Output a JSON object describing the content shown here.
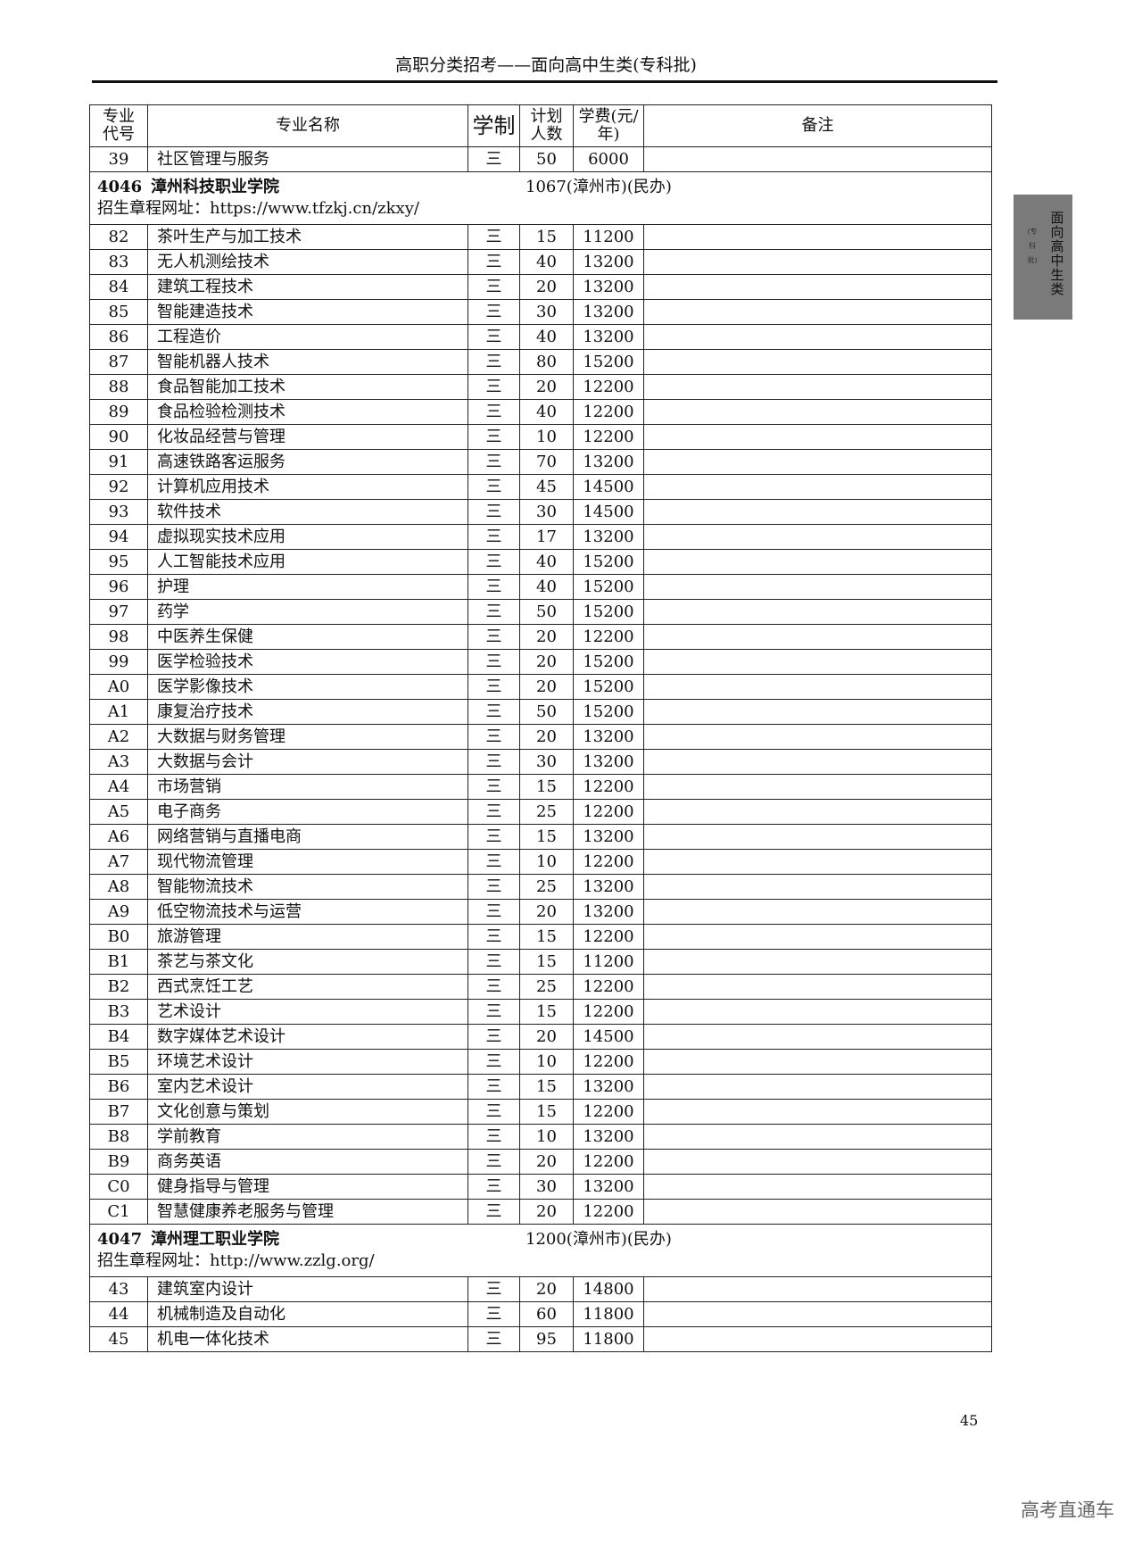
{
  "running_head": "高职分类招考——面向高中生类(专科批)",
  "side_tab": {
    "main": "面向高中生类",
    "sub": "(专科批)"
  },
  "table": {
    "headers": {
      "code": "专业代号",
      "name": "专业名称",
      "years": "学制",
      "plan": "计划人数",
      "fee": "学费(元/年)",
      "note": "备注"
    },
    "header_lines": {
      "code": [
        "专业",
        "代号"
      ],
      "plan": [
        "计划",
        "人数"
      ],
      "fee": [
        "学费",
        "(元/年)"
      ]
    },
    "sections": [
      {
        "type": "rows",
        "rows": [
          {
            "code": "39",
            "name": "社区管理与服务",
            "years": "三",
            "plan": "50",
            "fee": "6000",
            "note": ""
          }
        ]
      },
      {
        "type": "school",
        "id": "4046",
        "name": "漳州科技职业学院",
        "info": "1067(漳州市)(民办)",
        "url_line": "招生章程网址：https://www.tfzkj.cn/zkxy/"
      },
      {
        "type": "rows",
        "rows": [
          {
            "code": "82",
            "name": "茶叶生产与加工技术",
            "years": "三",
            "plan": "15",
            "fee": "11200",
            "note": ""
          },
          {
            "code": "83",
            "name": "无人机测绘技术",
            "years": "三",
            "plan": "40",
            "fee": "13200",
            "note": ""
          },
          {
            "code": "84",
            "name": "建筑工程技术",
            "years": "三",
            "plan": "20",
            "fee": "13200",
            "note": ""
          },
          {
            "code": "85",
            "name": "智能建造技术",
            "years": "三",
            "plan": "30",
            "fee": "13200",
            "note": ""
          },
          {
            "code": "86",
            "name": "工程造价",
            "years": "三",
            "plan": "40",
            "fee": "13200",
            "note": ""
          },
          {
            "code": "87",
            "name": "智能机器人技术",
            "years": "三",
            "plan": "80",
            "fee": "15200",
            "note": ""
          },
          {
            "code": "88",
            "name": "食品智能加工技术",
            "years": "三",
            "plan": "20",
            "fee": "12200",
            "note": ""
          },
          {
            "code": "89",
            "name": "食品检验检测技术",
            "years": "三",
            "plan": "40",
            "fee": "12200",
            "note": ""
          },
          {
            "code": "90",
            "name": "化妆品经营与管理",
            "years": "三",
            "plan": "10",
            "fee": "12200",
            "note": ""
          },
          {
            "code": "91",
            "name": "高速铁路客运服务",
            "years": "三",
            "plan": "70",
            "fee": "13200",
            "note": ""
          },
          {
            "code": "92",
            "name": "计算机应用技术",
            "years": "三",
            "plan": "45",
            "fee": "14500",
            "note": ""
          },
          {
            "code": "93",
            "name": "软件技术",
            "years": "三",
            "plan": "30",
            "fee": "14500",
            "note": ""
          },
          {
            "code": "94",
            "name": "虚拟现实技术应用",
            "years": "三",
            "plan": "17",
            "fee": "13200",
            "note": ""
          },
          {
            "code": "95",
            "name": "人工智能技术应用",
            "years": "三",
            "plan": "40",
            "fee": "15200",
            "note": ""
          },
          {
            "code": "96",
            "name": "护理",
            "years": "三",
            "plan": "40",
            "fee": "15200",
            "note": ""
          },
          {
            "code": "97",
            "name": "药学",
            "years": "三",
            "plan": "50",
            "fee": "15200",
            "note": ""
          },
          {
            "code": "98",
            "name": "中医养生保健",
            "years": "三",
            "plan": "20",
            "fee": "12200",
            "note": ""
          },
          {
            "code": "99",
            "name": "医学检验技术",
            "years": "三",
            "plan": "20",
            "fee": "15200",
            "note": ""
          },
          {
            "code": "A0",
            "name": "医学影像技术",
            "years": "三",
            "plan": "20",
            "fee": "15200",
            "note": ""
          },
          {
            "code": "A1",
            "name": "康复治疗技术",
            "years": "三",
            "plan": "50",
            "fee": "15200",
            "note": ""
          },
          {
            "code": "A2",
            "name": "大数据与财务管理",
            "years": "三",
            "plan": "20",
            "fee": "13200",
            "note": ""
          },
          {
            "code": "A3",
            "name": "大数据与会计",
            "years": "三",
            "plan": "30",
            "fee": "13200",
            "note": ""
          },
          {
            "code": "A4",
            "name": "市场营销",
            "years": "三",
            "plan": "15",
            "fee": "12200",
            "note": ""
          },
          {
            "code": "A5",
            "name": "电子商务",
            "years": "三",
            "plan": "25",
            "fee": "12200",
            "note": ""
          },
          {
            "code": "A6",
            "name": "网络营销与直播电商",
            "years": "三",
            "plan": "15",
            "fee": "13200",
            "note": ""
          },
          {
            "code": "A7",
            "name": "现代物流管理",
            "years": "三",
            "plan": "10",
            "fee": "12200",
            "note": ""
          },
          {
            "code": "A8",
            "name": "智能物流技术",
            "years": "三",
            "plan": "25",
            "fee": "13200",
            "note": ""
          },
          {
            "code": "A9",
            "name": "低空物流技术与运营",
            "years": "三",
            "plan": "20",
            "fee": "13200",
            "note": ""
          },
          {
            "code": "B0",
            "name": "旅游管理",
            "years": "三",
            "plan": "15",
            "fee": "12200",
            "note": ""
          },
          {
            "code": "B1",
            "name": "茶艺与茶文化",
            "years": "三",
            "plan": "15",
            "fee": "11200",
            "note": ""
          },
          {
            "code": "B2",
            "name": "西式烹饪工艺",
            "years": "三",
            "plan": "25",
            "fee": "12200",
            "note": ""
          },
          {
            "code": "B3",
            "name": "艺术设计",
            "years": "三",
            "plan": "15",
            "fee": "12200",
            "note": ""
          },
          {
            "code": "B4",
            "name": "数字媒体艺术设计",
            "years": "三",
            "plan": "20",
            "fee": "14500",
            "note": ""
          },
          {
            "code": "B5",
            "name": "环境艺术设计",
            "years": "三",
            "plan": "10",
            "fee": "12200",
            "note": ""
          },
          {
            "code": "B6",
            "name": "室内艺术设计",
            "years": "三",
            "plan": "15",
            "fee": "13200",
            "note": ""
          },
          {
            "code": "B7",
            "name": "文化创意与策划",
            "years": "三",
            "plan": "15",
            "fee": "12200",
            "note": ""
          },
          {
            "code": "B8",
            "name": "学前教育",
            "years": "三",
            "plan": "10",
            "fee": "13200",
            "note": ""
          },
          {
            "code": "B9",
            "name": "商务英语",
            "years": "三",
            "plan": "20",
            "fee": "12200",
            "note": ""
          },
          {
            "code": "C0",
            "name": "健身指导与管理",
            "years": "三",
            "plan": "30",
            "fee": "13200",
            "note": ""
          },
          {
            "code": "C1",
            "name": "智慧健康养老服务与管理",
            "years": "三",
            "plan": "20",
            "fee": "12200",
            "note": ""
          }
        ]
      },
      {
        "type": "school",
        "id": "4047",
        "name": "漳州理工职业学院",
        "info": "1200(漳州市)(民办)",
        "url_line": "招生章程网址：http://www.zzlg.org/"
      },
      {
        "type": "rows",
        "rows": [
          {
            "code": "43",
            "name": "建筑室内设计",
            "years": "三",
            "plan": "20",
            "fee": "14800",
            "note": ""
          },
          {
            "code": "44",
            "name": "机械制造及自动化",
            "years": "三",
            "plan": "60",
            "fee": "11800",
            "note": ""
          },
          {
            "code": "45",
            "name": "机电一体化技术",
            "years": "三",
            "plan": "95",
            "fee": "11800",
            "note": ""
          }
        ]
      }
    ]
  },
  "page_number": "45",
  "watermark": "高考直通车"
}
